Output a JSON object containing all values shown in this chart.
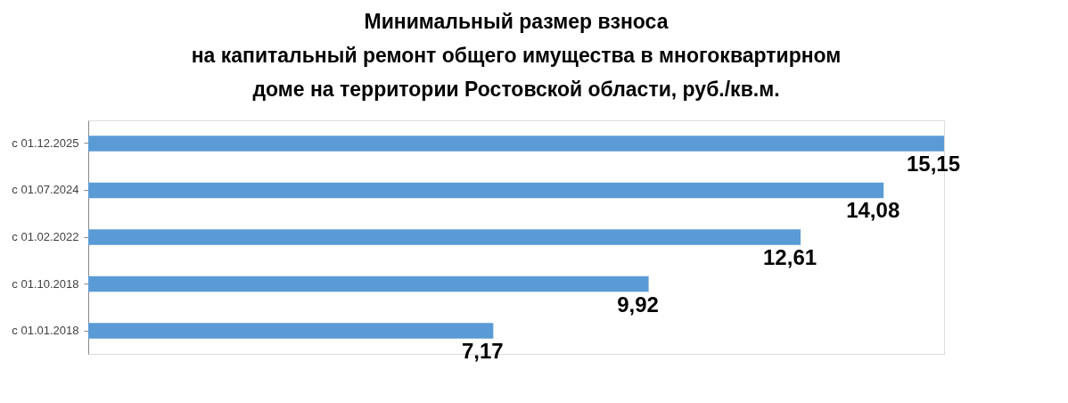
{
  "chart_data": {
    "type": "bar",
    "orientation": "horizontal",
    "title": [
      "Минимальный размер взноса",
      "на капитальный ремонт общего имущества в многоквартирном",
      "доме на территории Ростовской области, руб./кв.м."
    ],
    "categories": [
      "с 01.12.2025",
      "с 01.07.2024",
      "с 01.02.2022",
      "с 01.10.2018",
      "с 01.01.2018"
    ],
    "values": [
      15.15,
      14.08,
      12.61,
      9.92,
      7.17
    ],
    "value_labels": [
      "15,15",
      "14,08",
      "12,61",
      "9,92",
      "7,17"
    ],
    "color": "#5b9bd5"
  }
}
